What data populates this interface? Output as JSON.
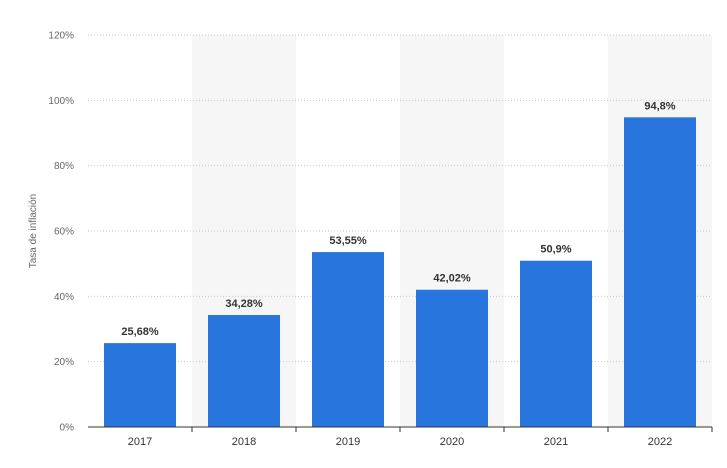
{
  "chart_data": {
    "type": "bar",
    "categories": [
      "2017",
      "2018",
      "2019",
      "2020",
      "2021",
      "2022"
    ],
    "series": [
      {
        "values": [
          25.68,
          34.28,
          53.55,
          42.02,
          50.9,
          94.8
        ],
        "value_labels": [
          "25,68%",
          "34,28%",
          "53,55%",
          "42,02%",
          "50,9%",
          "94,8%"
        ]
      }
    ],
    "title": "",
    "xlabel": "",
    "ylabel": "Tasa de inflación",
    "ylim": [
      0,
      120
    ],
    "y_ticks": [
      0,
      20,
      40,
      60,
      80,
      100,
      120
    ],
    "y_tick_labels": [
      "0%",
      "20%",
      "40%",
      "60%",
      "80%",
      "100%",
      "120%"
    ],
    "grid": true,
    "legend": "none",
    "colors": {
      "bar": "#2876dd",
      "band": "#f6f6f6",
      "grid": "#c8c8c8",
      "axis": "#333333",
      "tick_label": "#666666",
      "value_label": "#333333"
    }
  }
}
